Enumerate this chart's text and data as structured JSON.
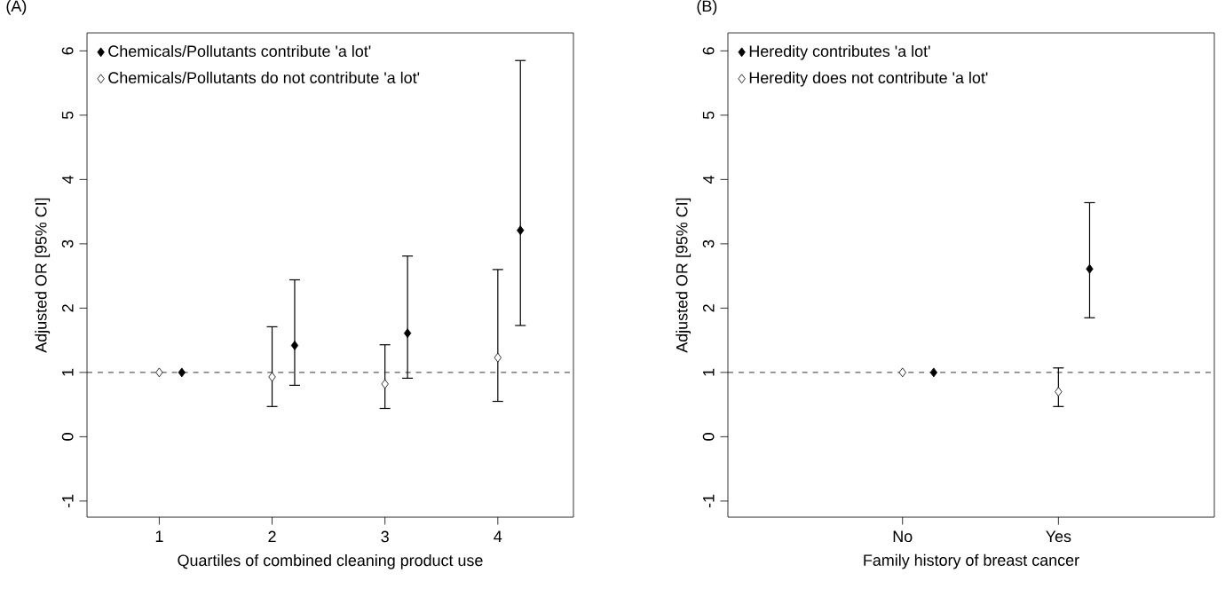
{
  "chart_data": [
    {
      "type": "scatter",
      "title": "(A)",
      "xlabel": "Quartiles of combined cleaning product use",
      "ylabel": "Adjusted OR [95% CI]",
      "xlim": [
        0.36,
        4.67
      ],
      "ylim": [
        -1.25,
        6.28
      ],
      "xticks": [
        1,
        2,
        3,
        4
      ],
      "yticks": [
        -1,
        0,
        1,
        2,
        3,
        4,
        5,
        6
      ],
      "marker": "diamond",
      "legend": "top left",
      "grid": false,
      "ref_lines": [
        {
          "axis": "y",
          "value": 1,
          "line_style": "dashed",
          "color": "#000000"
        }
      ],
      "series": [
        {
          "name": "Chemicals/Pollutants do not contribute 'a lot'",
          "color": "#ffffff",
          "x": [
            1,
            2,
            3,
            4
          ],
          "values": [
            1,
            0.93,
            0.82,
            1.23
          ],
          "errors": [
            null,
            [
              0.47,
              1.71
            ],
            [
              0.44,
              1.43
            ],
            [
              0.55,
              2.6
            ]
          ]
        },
        {
          "name": "Chemicals/Pollutants contribute 'a lot'",
          "color": "#000000",
          "x": [
            1.2,
            2.2,
            3.2,
            4.2
          ],
          "values": [
            1,
            1.42,
            1.61,
            3.21
          ],
          "errors": [
            null,
            [
              0.8,
              2.44
            ],
            [
              0.91,
              2.81
            ],
            [
              1.73,
              5.85
            ]
          ]
        }
      ]
    },
    {
      "type": "scatter",
      "title": "(B)",
      "xlabel": "Family history of breast cancer",
      "ylabel": "Adjusted OR [95% CI]",
      "categories": [
        "No",
        "Yes"
      ],
      "ylim": [
        -1.25,
        6.28
      ],
      "yticks": [
        -1,
        0,
        1,
        2,
        3,
        4,
        5,
        6
      ],
      "marker": "diamond",
      "legend": "top left",
      "grid": false,
      "ref_lines": [
        {
          "axis": "y",
          "value": 1,
          "line_style": "dashed",
          "color": "#000000"
        }
      ],
      "series": [
        {
          "name": "Heredity does not contribute 'a lot'",
          "color": "#ffffff",
          "values": [
            1,
            0.7
          ],
          "errors": [
            null,
            [
              0.47,
              1.07
            ]
          ]
        },
        {
          "name": "Heredity contributes 'a lot'",
          "color": "#000000",
          "values": [
            1,
            2.61
          ],
          "errors": [
            null,
            [
              1.85,
              3.64
            ]
          ]
        }
      ]
    }
  ]
}
